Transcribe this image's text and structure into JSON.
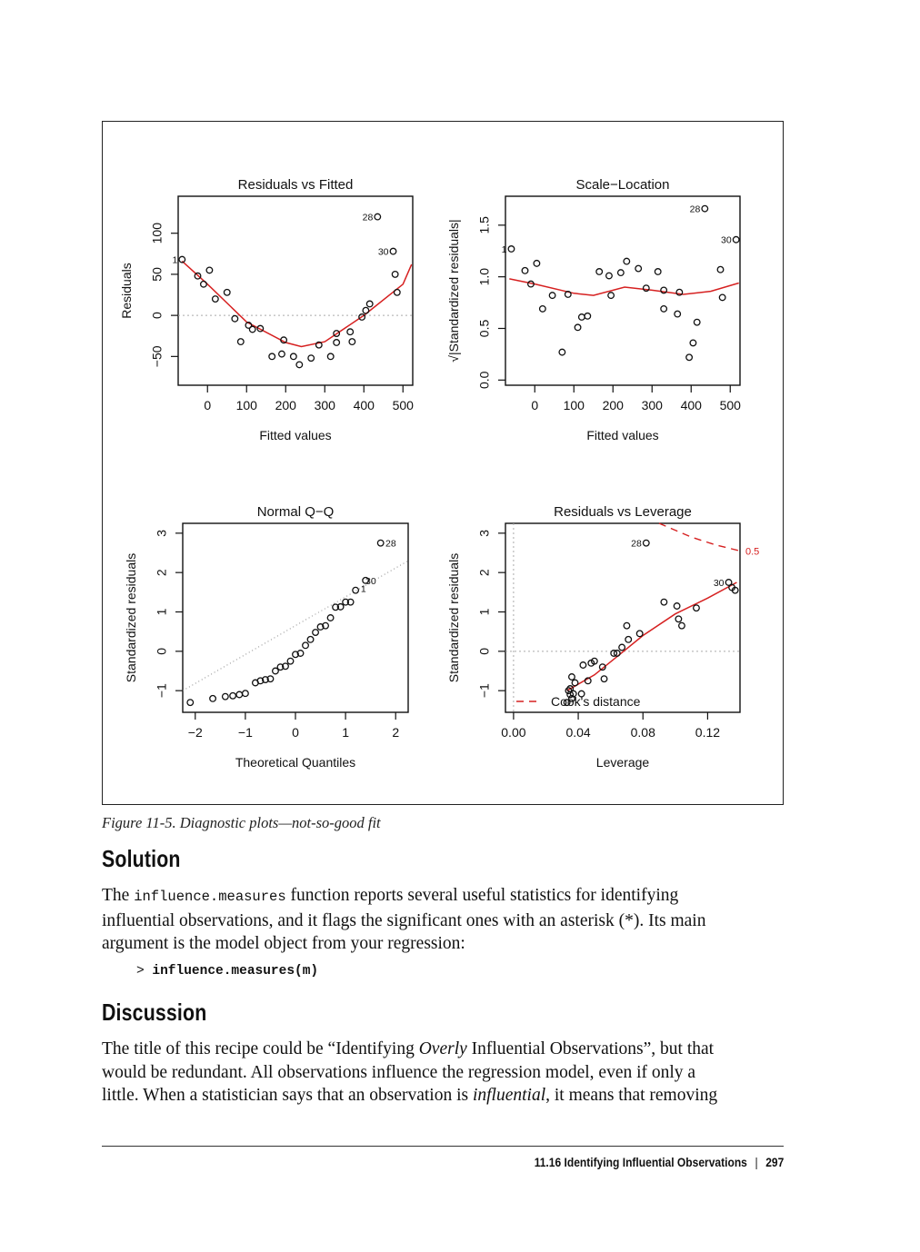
{
  "figure": {
    "caption": "Figure 11-5. Diagnostic plots—not-so-good fit",
    "colors": {
      "fit_line": "#d62020",
      "points": "#111111",
      "zero_line": "#aaaaaa",
      "cook": "#d62020"
    },
    "chart_data": [
      {
        "type": "scatter",
        "title": "Residuals vs Fitted",
        "xlabel": "Fitted values",
        "ylabel": "Residuals",
        "xlim": [
          -75,
          525
        ],
        "ylim": [
          -85,
          145
        ],
        "xticks": [
          0,
          100,
          200,
          300,
          400,
          500
        ],
        "yticks": [
          -50,
          0,
          50,
          100
        ],
        "reference_line": 0,
        "points": [
          [
            -65,
            68
          ],
          [
            -25,
            48
          ],
          [
            -10,
            38
          ],
          [
            5,
            55
          ],
          [
            20,
            20
          ],
          [
            50,
            28
          ],
          [
            70,
            -4
          ],
          [
            85,
            -32
          ],
          [
            105,
            -12
          ],
          [
            115,
            -17
          ],
          [
            135,
            -16
          ],
          [
            165,
            -50
          ],
          [
            190,
            -47
          ],
          [
            195,
            -30
          ],
          [
            220,
            -50
          ],
          [
            235,
            -60
          ],
          [
            265,
            -52
          ],
          [
            285,
            -36
          ],
          [
            315,
            -50
          ],
          [
            330,
            -22
          ],
          [
            330,
            -33
          ],
          [
            365,
            -20
          ],
          [
            370,
            -32
          ],
          [
            395,
            -2
          ],
          [
            405,
            6
          ],
          [
            415,
            14
          ],
          [
            435,
            120
          ],
          [
            475,
            78
          ],
          [
            480,
            50
          ],
          [
            485,
            28
          ]
        ],
        "smooth": [
          [
            -65,
            66
          ],
          [
            0,
            38
          ],
          [
            100,
            -8
          ],
          [
            200,
            -33
          ],
          [
            240,
            -38
          ],
          [
            300,
            -32
          ],
          [
            400,
            0
          ],
          [
            500,
            38
          ],
          [
            522,
            62
          ]
        ],
        "labels": [
          {
            "text": "1",
            "x": -65,
            "y": 68
          },
          {
            "text": "28",
            "x": 435,
            "y": 120
          },
          {
            "text": "30",
            "x": 475,
            "y": 78
          }
        ]
      },
      {
        "type": "scatter",
        "title": "Scale−Location",
        "xlabel": "Fitted values",
        "ylabel": "√|Standardized residuals|",
        "xlim": [
          -75,
          525
        ],
        "ylim": [
          -0.05,
          1.78
        ],
        "xticks": [
          0,
          100,
          200,
          300,
          400,
          500
        ],
        "yticks": [
          0.0,
          0.5,
          1.0,
          1.5
        ],
        "points": [
          [
            -60,
            1.27
          ],
          [
            -25,
            1.06
          ],
          [
            -10,
            0.93
          ],
          [
            5,
            1.13
          ],
          [
            20,
            0.69
          ],
          [
            45,
            0.82
          ],
          [
            70,
            0.27
          ],
          [
            85,
            0.83
          ],
          [
            110,
            0.51
          ],
          [
            120,
            0.61
          ],
          [
            135,
            0.62
          ],
          [
            165,
            1.05
          ],
          [
            190,
            1.01
          ],
          [
            195,
            0.82
          ],
          [
            220,
            1.04
          ],
          [
            235,
            1.15
          ],
          [
            265,
            1.08
          ],
          [
            285,
            0.89
          ],
          [
            315,
            1.05
          ],
          [
            330,
            0.69
          ],
          [
            330,
            0.87
          ],
          [
            365,
            0.64
          ],
          [
            370,
            0.85
          ],
          [
            395,
            0.22
          ],
          [
            405,
            0.36
          ],
          [
            415,
            0.56
          ],
          [
            435,
            1.66
          ],
          [
            475,
            1.07
          ],
          [
            480,
            0.8
          ],
          [
            515,
            1.36
          ]
        ],
        "smooth": [
          [
            -65,
            0.98
          ],
          [
            0,
            0.93
          ],
          [
            100,
            0.84
          ],
          [
            150,
            0.82
          ],
          [
            230,
            0.9
          ],
          [
            300,
            0.87
          ],
          [
            380,
            0.83
          ],
          [
            450,
            0.86
          ],
          [
            522,
            0.94
          ]
        ],
        "labels": [
          {
            "text": "1",
            "x": -60,
            "y": 1.27
          },
          {
            "text": "28",
            "x": 435,
            "y": 1.66
          },
          {
            "text": "30",
            "x": 515,
            "y": 1.36
          }
        ]
      },
      {
        "type": "scatter",
        "title": "Normal Q−Q",
        "xlabel": "Theoretical Quantiles",
        "ylabel": "Standardized residuals",
        "xlim": [
          -2.25,
          2.25
        ],
        "ylim": [
          -1.55,
          3.25
        ],
        "xticks": [
          -2,
          -1,
          0,
          1,
          2
        ],
        "yticks": [
          -1,
          0,
          1,
          2,
          3
        ],
        "points": [
          [
            -2.1,
            -1.3
          ],
          [
            -1.65,
            -1.2
          ],
          [
            -1.4,
            -1.15
          ],
          [
            -1.25,
            -1.13
          ],
          [
            -1.12,
            -1.1
          ],
          [
            -1.0,
            -1.07
          ],
          [
            -0.8,
            -0.8
          ],
          [
            -0.7,
            -0.75
          ],
          [
            -0.6,
            -0.72
          ],
          [
            -0.5,
            -0.7
          ],
          [
            -0.4,
            -0.5
          ],
          [
            -0.3,
            -0.4
          ],
          [
            -0.2,
            -0.38
          ],
          [
            -0.1,
            -0.25
          ],
          [
            0.0,
            -0.08
          ],
          [
            0.1,
            -0.05
          ],
          [
            0.2,
            0.15
          ],
          [
            0.3,
            0.3
          ],
          [
            0.4,
            0.48
          ],
          [
            0.5,
            0.62
          ],
          [
            0.6,
            0.65
          ],
          [
            0.7,
            0.85
          ],
          [
            0.8,
            1.12
          ],
          [
            0.9,
            1.13
          ],
          [
            1.0,
            1.25
          ],
          [
            1.1,
            1.25
          ],
          [
            1.2,
            1.55
          ],
          [
            1.4,
            1.8
          ],
          [
            1.7,
            2.75
          ]
        ],
        "reference": [
          [
            -2.25,
            -1.0
          ],
          [
            2.25,
            2.3
          ]
        ],
        "labels": [
          {
            "text": "28",
            "x": 2.1,
            "y": 2.75
          },
          {
            "text": "1",
            "x": 1.5,
            "y": 1.6
          },
          {
            "text": "30",
            "x": 1.7,
            "y": 1.8
          }
        ]
      },
      {
        "type": "scatter",
        "title": "Residuals vs Leverage",
        "xlabel": "Leverage",
        "ylabel": "Standardized residuals",
        "xlim": [
          -0.005,
          0.14
        ],
        "ylim": [
          -1.55,
          3.25
        ],
        "xticks": [
          0.0,
          0.04,
          0.08,
          0.12
        ],
        "yticks": [
          -1,
          0,
          1,
          2,
          3
        ],
        "reference_line": 0,
        "points": [
          [
            0.034,
            -1.0
          ],
          [
            0.035,
            -1.1
          ],
          [
            0.033,
            -1.3
          ],
          [
            0.036,
            -1.2
          ],
          [
            0.035,
            -0.95
          ],
          [
            0.037,
            -1.08
          ],
          [
            0.042,
            -1.08
          ],
          [
            0.036,
            -0.65
          ],
          [
            0.038,
            -0.8
          ],
          [
            0.043,
            -0.35
          ],
          [
            0.046,
            -0.75
          ],
          [
            0.048,
            -0.3
          ],
          [
            0.05,
            -0.25
          ],
          [
            0.055,
            -0.4
          ],
          [
            0.056,
            -0.7
          ],
          [
            0.062,
            -0.05
          ],
          [
            0.064,
            -0.05
          ],
          [
            0.067,
            0.1
          ],
          [
            0.07,
            0.65
          ],
          [
            0.071,
            0.3
          ],
          [
            0.078,
            0.45
          ],
          [
            0.082,
            2.75
          ],
          [
            0.093,
            1.25
          ],
          [
            0.101,
            1.15
          ],
          [
            0.102,
            0.82
          ],
          [
            0.104,
            0.65
          ],
          [
            0.113,
            1.1
          ],
          [
            0.133,
            1.75
          ],
          [
            0.137,
            1.55
          ],
          [
            0.135,
            1.62
          ]
        ],
        "smooth": [
          [
            0.033,
            -1.0
          ],
          [
            0.05,
            -0.6
          ],
          [
            0.065,
            -0.1
          ],
          [
            0.08,
            0.4
          ],
          [
            0.1,
            0.95
          ],
          [
            0.12,
            1.35
          ],
          [
            0.138,
            1.75
          ]
        ],
        "cook_curve": [
          [
            0.09,
            3.25
          ],
          [
            0.11,
            2.9
          ],
          [
            0.125,
            2.7
          ],
          [
            0.14,
            2.55
          ]
        ],
        "cook_label": "0.5",
        "legend": "Cook's distance",
        "labels": [
          {
            "text": "28",
            "x": 0.082,
            "y": 2.75
          },
          {
            "text": "30",
            "x": 0.133,
            "y": 1.75
          }
        ]
      }
    ]
  },
  "solution": {
    "heading": "Solution",
    "para_lines": [
      [
        "The ",
        "influence.measures",
        " function reports several useful statistics for identifying"
      ],
      [
        "influential observations, and it flags the significant ones with an asterisk (*). Its main"
      ],
      [
        "argument is the model object from your regression:"
      ]
    ],
    "code_prompt": "> ",
    "code": "influence.measures(m)"
  },
  "discussion": {
    "heading": "Discussion",
    "line1_a": "The title of this recipe could be “Identifying ",
    "line1_em": "Overly",
    "line1_b": " Influential Observations”, but that",
    "line2": "would be redundant. All observations influence the regression model, even if only a",
    "line3_a": "little. When a statistician says that an observation is ",
    "line3_em": "influential",
    "line3_b": ", it means that removing"
  },
  "footer": {
    "section": "11.16  Identifying Influential Observations",
    "separator": "|",
    "page": "297"
  }
}
